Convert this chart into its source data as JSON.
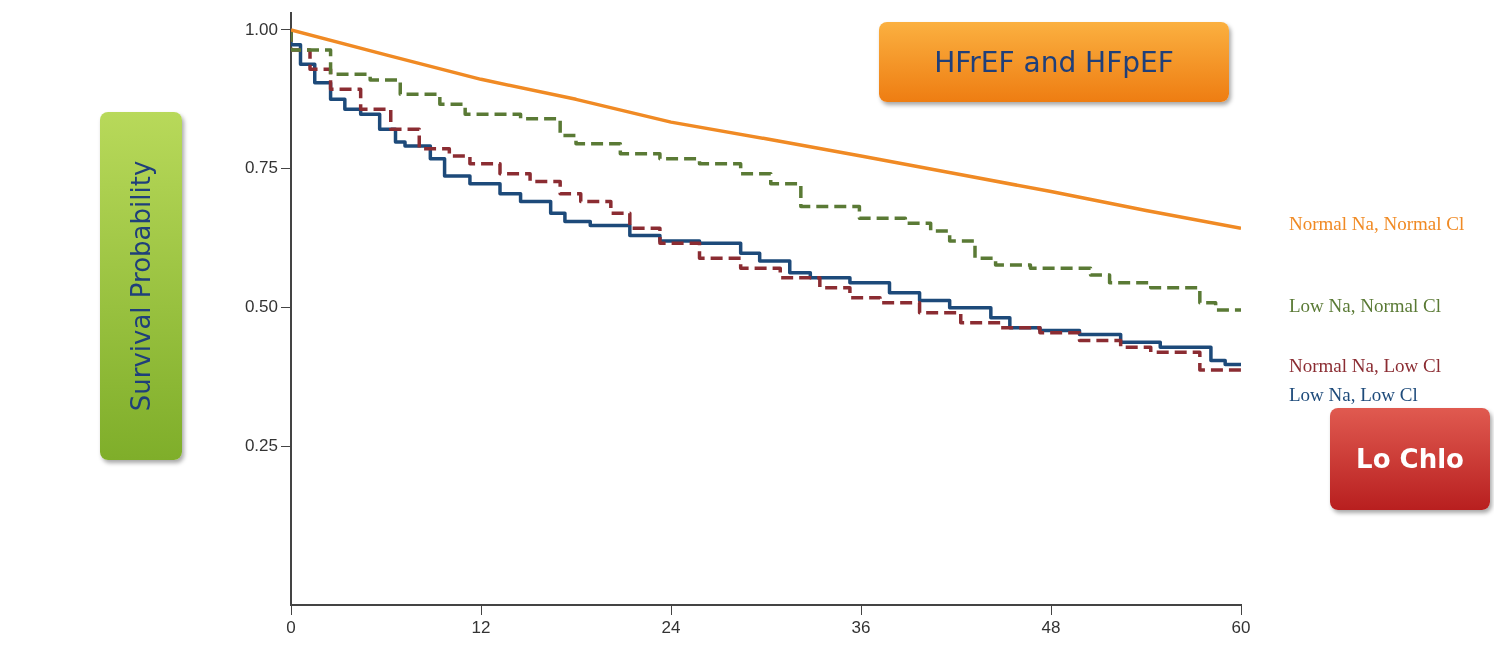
{
  "chart_data": {
    "type": "step",
    "ylabel": "Survival Probability",
    "annotations": [
      "HFrEF and HFpEF",
      "Lo Chlo"
    ],
    "xlim": [
      0,
      60
    ],
    "xticks": [
      0,
      12,
      24,
      36,
      48,
      60
    ],
    "ylim": [
      -0.035,
      1.03
    ],
    "yticks": [
      {
        "value": 0.25,
        "label": "0.25"
      },
      {
        "value": 0.5,
        "label": "0.50"
      },
      {
        "value": 0.75,
        "label": "0.75"
      },
      {
        "value": 1,
        "label": "1.00"
      }
    ],
    "grid": false,
    "legend": false,
    "marker": "none",
    "series": [
      {
        "name": "Normal Na, Normal Cl",
        "type": "line",
        "color": "#f08a24",
        "line_style": "solid",
        "x": [
          0,
          6,
          12,
          18,
          24,
          30,
          36,
          42,
          48,
          54,
          60
        ],
        "values": [
          1.0,
          0.955,
          0.911,
          0.875,
          0.834,
          0.804,
          0.773,
          0.741,
          0.709,
          0.675,
          0.643
        ]
      },
      {
        "name": "Low Na, Normal Cl",
        "color": "#5a7a35",
        "line_style": "dashed",
        "x": [
          0,
          2.5,
          5,
          6.9,
          9.4,
          11,
          14.5,
          17,
          18,
          20.8,
          23.3,
          25.8,
          28.4,
          30.3,
          32.2,
          33.4,
          35.9,
          38.8,
          40.4,
          41.6,
          43.2,
          44.5,
          46.7,
          50.5,
          51.7,
          54.3,
          57.4,
          58.4,
          60
        ],
        "values": [
          1.0,
          0.964,
          0.92,
          0.91,
          0.884,
          0.866,
          0.848,
          0.84,
          0.81,
          0.795,
          0.777,
          0.768,
          0.759,
          0.741,
          0.723,
          0.682,
          0.682,
          0.661,
          0.652,
          0.638,
          0.62,
          0.589,
          0.577,
          0.571,
          0.559,
          0.545,
          0.536,
          0.509,
          0.496
        ]
      },
      {
        "name": "Normal Na, Low Cl",
        "color": "#8b2c32",
        "line_style": "dashed",
        "x": [
          0,
          1.2,
          2.5,
          4.4,
          6.3,
          8.1,
          10,
          11.3,
          13.2,
          15.1,
          17,
          18.3,
          20.2,
          21.4,
          23.3,
          25.8,
          28.4,
          30.9,
          33.4,
          35.3,
          37.2,
          39.7,
          42.3,
          44.8,
          47.3,
          49.8,
          52.4,
          54.3,
          57.4,
          60
        ],
        "values": [
          1.0,
          0.964,
          0.929,
          0.893,
          0.857,
          0.821,
          0.786,
          0.773,
          0.759,
          0.741,
          0.727,
          0.705,
          0.691,
          0.67,
          0.643,
          0.616,
          0.589,
          0.571,
          0.554,
          0.536,
          0.518,
          0.509,
          0.491,
          0.473,
          0.464,
          0.455,
          0.441,
          0.429,
          0.42,
          0.388
        ]
      },
      {
        "name": "Low Na, Low Cl",
        "color": "#1d4a7a",
        "line_style": "solid",
        "x": [
          0,
          0.6,
          1.5,
          2.5,
          3.4,
          4.4,
          5.6,
          6.6,
          7.2,
          8.8,
          9.7,
          11.3,
          13.2,
          14.5,
          16.4,
          17.3,
          18.9,
          21.4,
          23.3,
          25.8,
          28.4,
          29.6,
          31.5,
          32.8,
          35.3,
          37.8,
          39.7,
          41.6,
          44.2,
          45.4,
          47.3,
          49.8,
          52.4,
          54.9,
          58.1,
          59,
          60
        ],
        "values": [
          1.0,
          0.973,
          0.938,
          0.905,
          0.875,
          0.857,
          0.848,
          0.821,
          0.798,
          0.791,
          0.768,
          0.737,
          0.723,
          0.705,
          0.691,
          0.67,
          0.655,
          0.648,
          0.63,
          0.62,
          0.616,
          0.598,
          0.584,
          0.563,
          0.554,
          0.545,
          0.527,
          0.513,
          0.5,
          0.482,
          0.464,
          0.459,
          0.452,
          0.438,
          0.429,
          0.405,
          0.398
        ]
      }
    ]
  }
}
